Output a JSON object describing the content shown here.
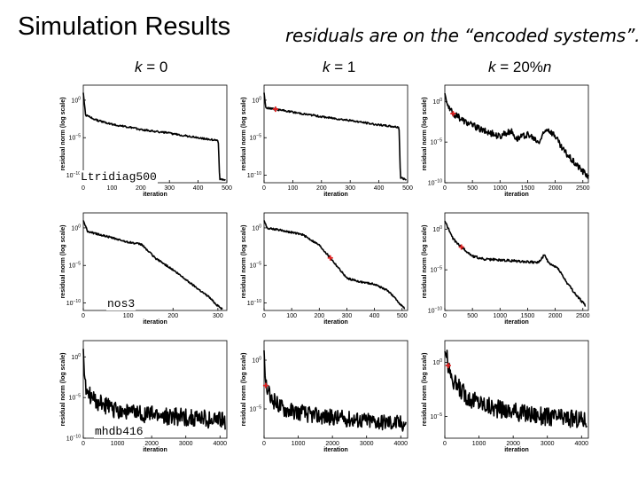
{
  "slide": {
    "title": "Simulation Results",
    "subtitle": "residuals are on the “encoded systems”.",
    "col_headers": [
      {
        "var": "k",
        "eq": " = ",
        "value": "0",
        "suffix": ""
      },
      {
        "var": "k",
        "eq": " = ",
        "value": "1",
        "suffix": ""
      },
      {
        "var": "k",
        "eq": " = ",
        "value": "20%",
        "suffix": "n"
      }
    ],
    "row_labels": [
      "Ltridiag500",
      "nos3",
      "mhdb416"
    ]
  },
  "colors": {
    "line": "#000000",
    "marker": "#e02020",
    "background": "#ffffff"
  },
  "chart_data": [
    {
      "id": "r0c0",
      "type": "line",
      "row": 0,
      "col": 0,
      "xlabel": "iteration",
      "ylabel": "residual norm (log scale)",
      "xlim": [
        0,
        500
      ],
      "ylim": [
        -11,
        2
      ],
      "xticks": [
        0,
        100,
        200,
        300,
        400,
        500
      ],
      "yticks": [
        0,
        -5,
        -10
      ],
      "marker": null,
      "shape": [
        [
          0,
          1
        ],
        [
          8,
          -2
        ],
        [
          50,
          -2.7
        ],
        [
          100,
          -3.2
        ],
        [
          200,
          -3.9
        ],
        [
          300,
          -4.4
        ],
        [
          400,
          -5
        ],
        [
          470,
          -5.4
        ],
        [
          475,
          -10.5
        ],
        [
          495,
          -10.7
        ]
      ],
      "noise": 0.12
    },
    {
      "id": "r0c1",
      "type": "line",
      "row": 0,
      "col": 1,
      "xlabel": "iteration",
      "ylabel": "residual norm (log scale)",
      "xlim": [
        0,
        500
      ],
      "ylim": [
        -11,
        2
      ],
      "xticks": [
        0,
        100,
        200,
        300,
        400,
        500
      ],
      "yticks": [
        0,
        -5,
        -10
      ],
      "marker": [
        40,
        -1.2
      ],
      "shape": [
        [
          0,
          1
        ],
        [
          6,
          -1
        ],
        [
          40,
          -1.2
        ],
        [
          100,
          -1.6
        ],
        [
          200,
          -2.2
        ],
        [
          300,
          -2.7
        ],
        [
          400,
          -3.3
        ],
        [
          470,
          -3.6
        ],
        [
          475,
          -10.3
        ],
        [
          495,
          -10.6
        ]
      ],
      "noise": 0.12
    },
    {
      "id": "r0c2",
      "type": "line",
      "row": 0,
      "col": 2,
      "xlabel": "iteration",
      "ylabel": "residual norm (log scale)",
      "xlim": [
        0,
        2600
      ],
      "ylim": [
        -10,
        2
      ],
      "xticks": [
        0,
        500,
        1000,
        1500,
        2000,
        2500
      ],
      "yticks": [
        0,
        -5,
        -10
      ],
      "marker": [
        150,
        -1.5
      ],
      "shape": [
        [
          0,
          1
        ],
        [
          60,
          -0.8
        ],
        [
          150,
          -1.5
        ],
        [
          400,
          -2.6
        ],
        [
          700,
          -3.6
        ],
        [
          1000,
          -4.3
        ],
        [
          1200,
          -3.6
        ],
        [
          1300,
          -4.6
        ],
        [
          1500,
          -4.1
        ],
        [
          1700,
          -5.1
        ],
        [
          1850,
          -3.3
        ],
        [
          2000,
          -4.2
        ],
        [
          2100,
          -5.6
        ],
        [
          2300,
          -7.2
        ],
        [
          2500,
          -8.6
        ],
        [
          2600,
          -9.2
        ]
      ],
      "noise": 0.4
    },
    {
      "id": "r1c0",
      "type": "line",
      "row": 1,
      "col": 0,
      "xlabel": "iteration",
      "ylabel": "residual norm (log scale)",
      "xlim": [
        0,
        320
      ],
      "ylim": [
        -11,
        2
      ],
      "xticks": [
        0,
        100,
        200,
        300
      ],
      "yticks": [
        0,
        -5,
        -10
      ],
      "marker": null,
      "shape": [
        [
          0,
          1
        ],
        [
          10,
          -0.5
        ],
        [
          50,
          -1.1
        ],
        [
          100,
          -1.9
        ],
        [
          130,
          -2.2
        ],
        [
          160,
          -4
        ],
        [
          200,
          -5.6
        ],
        [
          240,
          -7.4
        ],
        [
          280,
          -9.2
        ],
        [
          300,
          -10.4
        ],
        [
          310,
          -10.8
        ]
      ],
      "noise": 0.12
    },
    {
      "id": "r1c1",
      "type": "line",
      "row": 1,
      "col": 1,
      "xlabel": "iteration",
      "ylabel": "residual norm (log scale)",
      "xlim": [
        0,
        520
      ],
      "ylim": [
        -11,
        2
      ],
      "xticks": [
        0,
        100,
        200,
        300,
        400,
        500
      ],
      "yticks": [
        0,
        -5,
        -10
      ],
      "marker": [
        240,
        -4
      ],
      "shape": [
        [
          0,
          1
        ],
        [
          10,
          0
        ],
        [
          60,
          -0.3
        ],
        [
          140,
          -0.9
        ],
        [
          200,
          -2.3
        ],
        [
          240,
          -4
        ],
        [
          300,
          -6.7
        ],
        [
          350,
          -7.2
        ],
        [
          400,
          -7.5
        ],
        [
          450,
          -8.4
        ],
        [
          500,
          -10.4
        ],
        [
          510,
          -10.8
        ]
      ],
      "noise": 0.12
    },
    {
      "id": "r1c2",
      "type": "line",
      "row": 1,
      "col": 2,
      "xlabel": "iteration",
      "ylabel": "residual norm (log scale)",
      "xlim": [
        0,
        2600
      ],
      "ylim": [
        -10,
        2
      ],
      "xticks": [
        0,
        500,
        1000,
        1500,
        2000,
        2500
      ],
      "yticks": [
        0,
        -5,
        -10
      ],
      "marker": [
        300,
        -2.2
      ],
      "shape": [
        [
          0,
          1
        ],
        [
          150,
          -1.2
        ],
        [
          300,
          -2.2
        ],
        [
          500,
          -3.3
        ],
        [
          700,
          -3.7
        ],
        [
          1000,
          -3.8
        ],
        [
          1500,
          -4
        ],
        [
          1700,
          -4.1
        ],
        [
          1800,
          -3.2
        ],
        [
          1900,
          -4.3
        ],
        [
          2050,
          -4.8
        ],
        [
          2200,
          -6.5
        ],
        [
          2400,
          -8.3
        ],
        [
          2550,
          -9.4
        ]
      ],
      "noise": 0.15
    },
    {
      "id": "r2c0",
      "type": "line",
      "row": 2,
      "col": 0,
      "xlabel": "iteration",
      "ylabel": "residual norm (log scale)",
      "xlim": [
        0,
        4200
      ],
      "ylim": [
        -10,
        2
      ],
      "xticks": [
        0,
        1000,
        2000,
        3000,
        4000
      ],
      "yticks": [
        0,
        -5,
        -10
      ],
      "marker": null,
      "shape": [
        [
          0,
          1
        ],
        [
          40,
          -3
        ],
        [
          100,
          -4.3
        ],
        [
          300,
          -5.4
        ],
        [
          800,
          -6.3
        ],
        [
          1500,
          -6.9
        ],
        [
          2500,
          -7.3
        ],
        [
          3500,
          -7.6
        ],
        [
          4150,
          -7.9
        ]
      ],
      "noise": 1.1
    },
    {
      "id": "r2c1",
      "type": "line",
      "row": 2,
      "col": 1,
      "xlabel": "iteration",
      "ylabel": "residual norm (log scale)",
      "xlim": [
        0,
        4200
      ],
      "ylim": [
        -8,
        2
      ],
      "xticks": [
        0,
        1000,
        2000,
        3000,
        4000
      ],
      "yticks": [
        0,
        -5
      ],
      "marker": [
        50,
        -2.6
      ],
      "shape": [
        [
          0,
          1
        ],
        [
          30,
          -1.5
        ],
        [
          50,
          -2.6
        ],
        [
          200,
          -4
        ],
        [
          600,
          -5
        ],
        [
          1500,
          -5.7
        ],
        [
          3000,
          -6.2
        ],
        [
          4150,
          -6.5
        ]
      ],
      "noise": 0.85
    },
    {
      "id": "r2c2",
      "type": "line",
      "row": 2,
      "col": 2,
      "xlabel": "iteration",
      "ylabel": "residual norm (log scale)",
      "xlim": [
        0,
        4200
      ],
      "ylim": [
        -7,
        2
      ],
      "xticks": [
        0,
        1000,
        2000,
        3000,
        4000
      ],
      "yticks": [
        0,
        -5
      ],
      "marker": [
        100,
        -0.3
      ],
      "shape": [
        [
          0,
          1
        ],
        [
          50,
          0.5
        ],
        [
          100,
          -0.3
        ],
        [
          300,
          -2
        ],
        [
          700,
          -3.3
        ],
        [
          1500,
          -4.3
        ],
        [
          3000,
          -5
        ],
        [
          4150,
          -5.3
        ]
      ],
      "noise": 0.85
    }
  ]
}
